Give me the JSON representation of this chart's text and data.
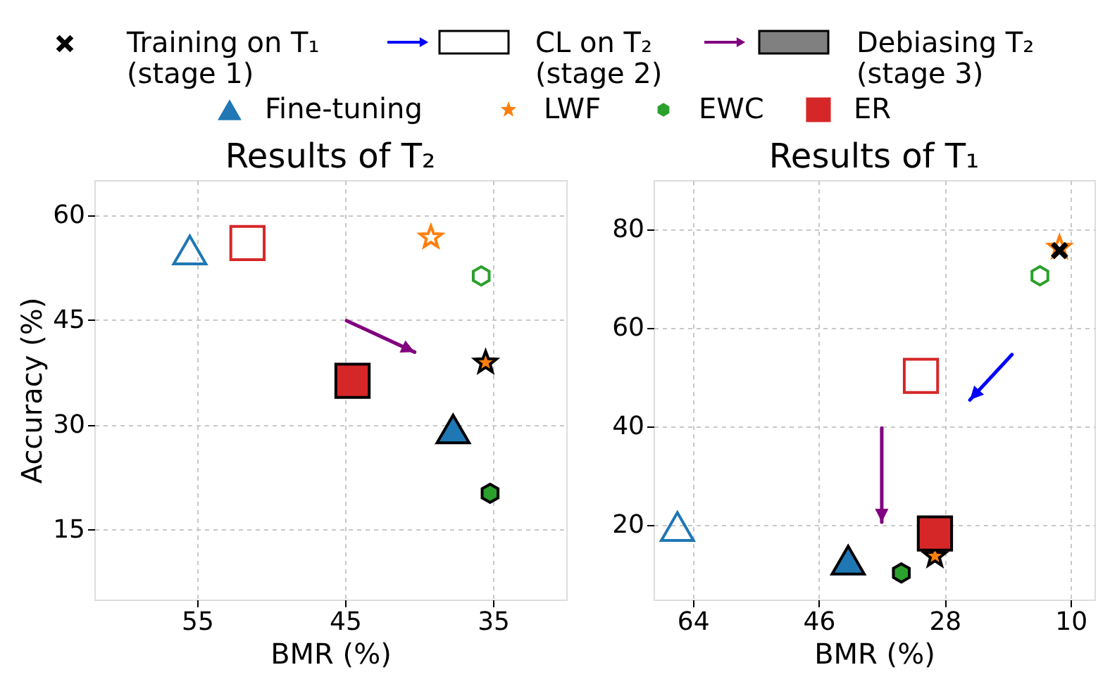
{
  "chart_data": [
    {
      "type": "scatter",
      "title": "Results of T₂",
      "xlabel": "BMR (%)",
      "ylabel": "Accuracy (%)",
      "xlim": [
        61.95,
        30.05
      ],
      "ylim": [
        5,
        65
      ],
      "xticks": [
        55,
        45,
        35
      ],
      "yticks": [
        15,
        30,
        45,
        60
      ],
      "grid": true,
      "legend": "top",
      "annotations": [
        "Training on T₁\n(stage 1)",
        "CL on T₂\n(stage 2)",
        "Debiasing T₂\n(stage 3)"
      ],
      "series": [
        {
          "name": "Fine-tuning",
          "color": "#1f77b4",
          "marker": "triangle",
          "x": [
            55.5,
            37.7
          ],
          "values": [
            55,
            29.4
          ]
        },
        {
          "name": "LWF",
          "color": "#ff7f0e",
          "marker": "star",
          "x": [
            39.2,
            35.5
          ],
          "values": [
            56.8,
            38.9
          ]
        },
        {
          "name": "EWC",
          "color": "#2ca02c",
          "x": [
            35.8,
            35.2
          ],
          "values": [
            51.3,
            20.2
          ]
        },
        {
          "name": "ER",
          "color": "#d62728",
          "marker": "square",
          "x": [
            51.6,
            44.5
          ],
          "values": [
            56,
            36.3
          ]
        }
      ]
    },
    {
      "type": "scatter",
      "title": "Results of T₁",
      "xlabel": "BMR (%)",
      "xlim": [
        69.6,
        6.6
      ],
      "ylim": [
        4.9,
        90
      ],
      "xticks": [
        64,
        46,
        28,
        10
      ],
      "yticks": [
        20,
        40,
        60,
        80
      ],
      "grid": true,
      "legend": "top",
      "series": [
        {
          "name": "Fine-tuning",
          "color": "#1f77b4",
          "marker": "triangle",
          "x": [
            66.2,
            41.8
          ],
          "values": [
            19.7,
            12.9
          ]
        },
        {
          "name": "LWF",
          "color": "#ff7f0e",
          "marker": "star",
          "x": [
            11.6,
            29.4
          ],
          "values": [
            76.3,
            13.7
          ]
        },
        {
          "name": "EWC",
          "color": "#2ca02c",
          "x": [
            14.4,
            34.2
          ],
          "values": [
            70.6,
            10.3
          ]
        },
        {
          "name": "ER",
          "color": "#d62728",
          "marker": "square",
          "x": [
            31.4,
            29.4
          ],
          "values": [
            50.3,
            18.3
          ]
        },
        {
          "type": "scatter",
          "color": "#000000",
          "marker": "cross",
          "x": [
            11.6
          ],
          "values": [
            75.7
          ]
        }
      ]
    }
  ]
}
